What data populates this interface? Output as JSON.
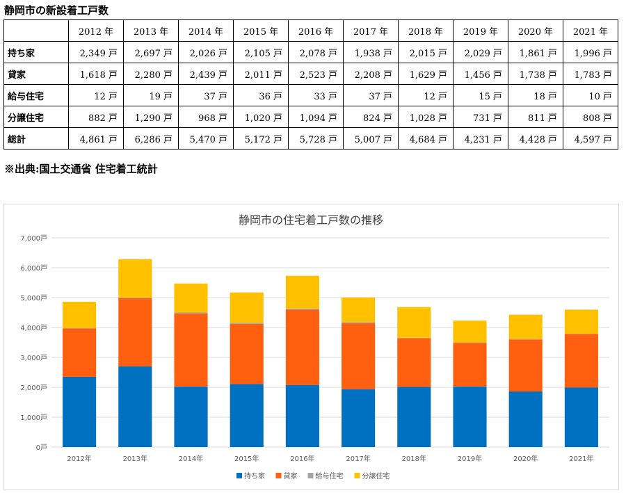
{
  "table": {
    "title": "静岡市の新設着工戸数",
    "corner": "",
    "years": [
      "2012 年",
      "2013 年",
      "2014 年",
      "2015 年",
      "2016 年",
      "2017 年",
      "2018 年",
      "2019 年",
      "2020 年",
      "2021 年"
    ],
    "rows": [
      {
        "label": "持ち家",
        "cells": [
          "2,349 戸",
          "2,697 戸",
          "2,026 戸",
          "2,105 戸",
          "2,078 戸",
          "1,938 戸",
          "2,015 戸",
          "2,029 戸",
          "1,861 戸",
          "1,996 戸"
        ]
      },
      {
        "label": "貸家",
        "cells": [
          "1,618 戸",
          "2,280 戸",
          "2,439 戸",
          "2,011 戸",
          "2,523 戸",
          "2,208 戸",
          "1,629 戸",
          "1,456 戸",
          "1,738 戸",
          "1,783 戸"
        ]
      },
      {
        "label": "給与住宅",
        "cells": [
          "12 戸",
          "19 戸",
          "37 戸",
          "36 戸",
          "33 戸",
          "37 戸",
          "12 戸",
          "15 戸",
          "18 戸",
          "10 戸"
        ]
      },
      {
        "label": "分譲住宅",
        "cells": [
          "882 戸",
          "1,290 戸",
          "968 戸",
          "1,020 戸",
          "1,094 戸",
          "824 戸",
          "1,028 戸",
          "731 戸",
          "811 戸",
          "808 戸"
        ]
      },
      {
        "label": "総計",
        "cells": [
          "4,861 戸",
          "6,286 戸",
          "5,470 戸",
          "5,172 戸",
          "5,728 戸",
          "5,007 戸",
          "4,684 戸",
          "4,231 戸",
          "4,428 戸",
          "4,597 戸"
        ]
      }
    ]
  },
  "source_note": "※出典:国土交通省 住宅着工統計",
  "chart_data": {
    "type": "bar",
    "stacked": true,
    "title": "静岡市の住宅着工戸数の推移",
    "categories": [
      "2012年",
      "2013年",
      "2014年",
      "2015年",
      "2016年",
      "2017年",
      "2018年",
      "2019年",
      "2020年",
      "2021年"
    ],
    "series": [
      {
        "name": "持ち家",
        "color": "#0070c0",
        "values": [
          2349,
          2697,
          2026,
          2105,
          2078,
          1938,
          2015,
          2029,
          1861,
          1996
        ]
      },
      {
        "name": "貸家",
        "color": "#ff6010",
        "values": [
          1618,
          2280,
          2439,
          2011,
          2523,
          2208,
          1629,
          1456,
          1738,
          1783
        ]
      },
      {
        "name": "給与住宅",
        "color": "#a5a5a5",
        "values": [
          12,
          19,
          37,
          36,
          33,
          37,
          12,
          15,
          18,
          10
        ]
      },
      {
        "name": "分譲住宅",
        "color": "#ffc000",
        "values": [
          882,
          1290,
          968,
          1020,
          1094,
          824,
          1028,
          731,
          811,
          808
        ]
      }
    ],
    "ylim": [
      0,
      7000
    ],
    "yticks": [
      0,
      1000,
      2000,
      3000,
      4000,
      5000,
      6000,
      7000
    ],
    "ytick_labels": [
      "0戸",
      "1,000戸",
      "2,000戸",
      "3,000戸",
      "4,000戸",
      "5,000戸",
      "6,000戸",
      "7,000戸"
    ],
    "grid": true,
    "legend_position": "bottom",
    "xlabel": "",
    "ylabel": ""
  }
}
